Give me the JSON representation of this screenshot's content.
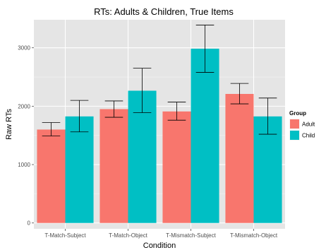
{
  "chart_data": {
    "type": "bar",
    "title": "RTs: Adults & Children, True Items",
    "xlabel": "Condition",
    "ylabel": "Raw RTs",
    "categories": [
      "T-Match-Subject",
      "T-Match-Object",
      "T-Mismatch-Subject",
      "T-Mismatch-Object"
    ],
    "series": [
      {
        "name": "Adult",
        "color": "#F8766D",
        "values": [
          1600,
          1950,
          1910,
          2210
        ],
        "error_low": [
          1490,
          1810,
          1760,
          2040
        ],
        "error_high": [
          1720,
          2090,
          2070,
          2390
        ]
      },
      {
        "name": "Child",
        "color": "#00BFC4",
        "values": [
          1825,
          2265,
          2985,
          1825
        ],
        "error_low": [
          1560,
          1890,
          2580,
          1520
        ],
        "error_high": [
          2100,
          2650,
          3390,
          2140
        ]
      }
    ],
    "ylim": [
      -100,
      3480
    ],
    "yticks": [
      "0",
      "1000",
      "2000",
      "3000"
    ],
    "legend_title": "Group",
    "legend_position": "right",
    "grid": true,
    "background": "#E5E5E5"
  }
}
